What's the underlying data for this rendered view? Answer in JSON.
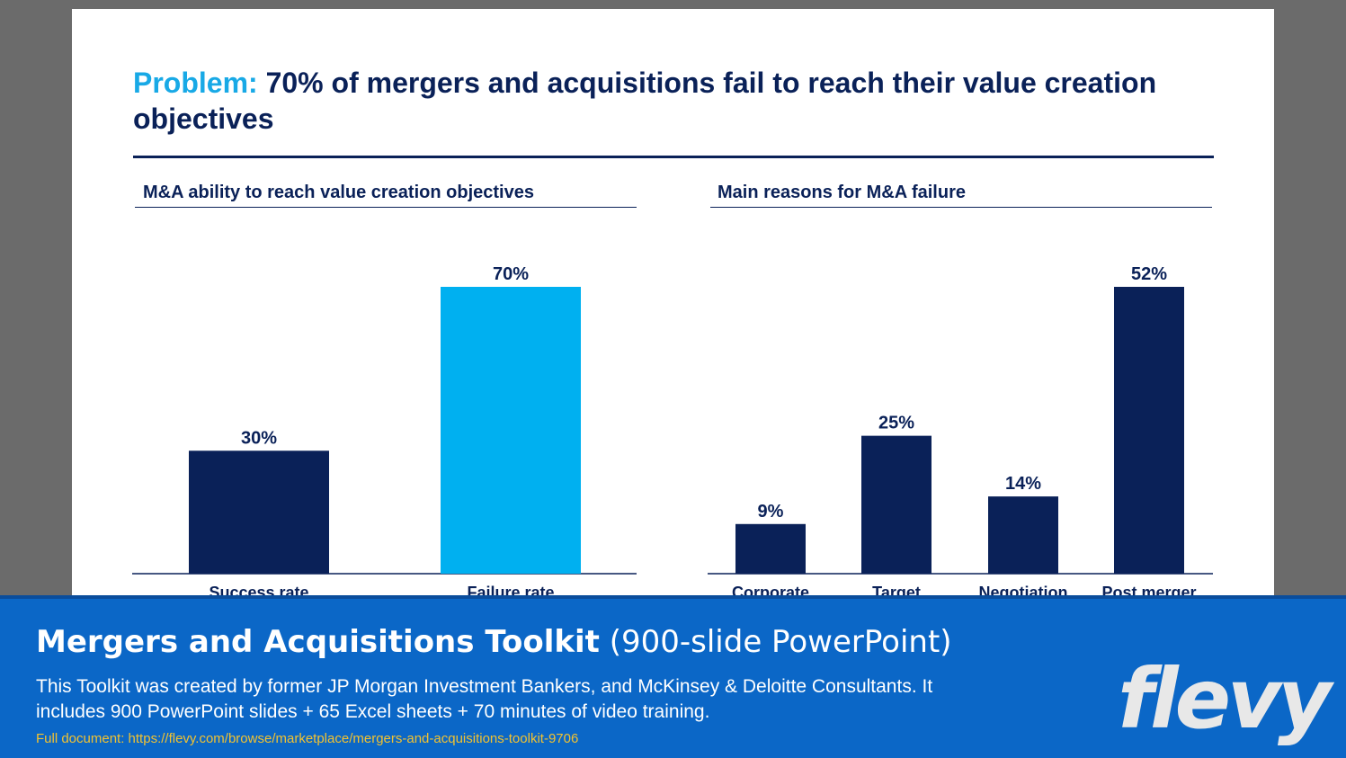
{
  "slide": {
    "title_keyword": "Problem:",
    "title_rest": " 70% of mergers and acquisitions fail to reach their value creation objectives"
  },
  "colors": {
    "navy": "#0a2158",
    "light_blue": "#00b0f0",
    "banner_blue": "#0b67c7",
    "link_yellow": "#f2c230"
  },
  "chart_data": [
    {
      "type": "bar",
      "title": "M&A ability to reach value creation objectives",
      "categories": [
        "Success rate",
        "Failure rate"
      ],
      "values": [
        30,
        70
      ],
      "value_labels": [
        "30%",
        "70%"
      ],
      "bar_colors": [
        "#0a2158",
        "#00b0f0"
      ],
      "ylim": [
        0,
        70
      ],
      "grid": false,
      "legend": "none"
    },
    {
      "type": "bar",
      "title": "Main reasons for M&A failure",
      "categories": [
        "Corporate",
        "Target",
        "Negotiation",
        "Post merger"
      ],
      "values": [
        9,
        25,
        14,
        52
      ],
      "value_labels": [
        "9%",
        "25%",
        "14%",
        "52%"
      ],
      "bar_colors": [
        "#0a2158",
        "#0a2158",
        "#0a2158",
        "#0a2158"
      ],
      "ylim": [
        0,
        52
      ],
      "grid": false,
      "legend": "none"
    }
  ],
  "banner": {
    "title_main": "Mergers and Acquisitions Toolkit",
    "title_sub": " (900-slide PowerPoint)",
    "description": "This Toolkit was created by former JP Morgan Investment Bankers, and McKinsey & Deloitte Consultants. It includes 900 PowerPoint slides + 65 Excel sheets + 70 minutes of video training.",
    "link": "Full document: https://flevy.com/browse/marketplace/mergers-and-acquisitions-toolkit-9706",
    "logo": "flevy"
  }
}
